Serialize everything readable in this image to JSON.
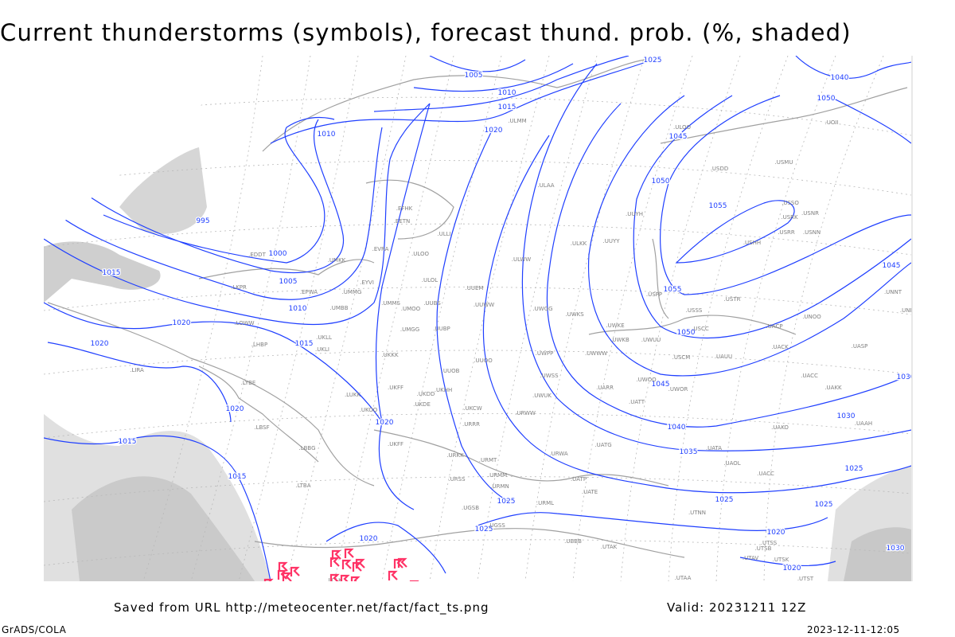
{
  "title": "Current thunderstorms (symbols), forecast thund. prob. (%, shaded)",
  "footer": {
    "source": "Saved from URL http://meteocenter.net/fact/fact_ts.png",
    "valid": "Valid: 20231211 12Z",
    "software": "GrADS/COLA",
    "timestamp": "2023-12-11-12:05"
  },
  "colors": {
    "isobar": "#1f3fff",
    "coastline": "#a0a0a0",
    "grid": "#b0b0b0",
    "thunderstorm_symbol": "#ff3366",
    "probability_shading": "#d4d4d4",
    "station_label": "#808080"
  },
  "isobar_labels": [
    "1005",
    "1010",
    "1015",
    "1020",
    "1025",
    "1040",
    "1050",
    "1045",
    "1050",
    "1055",
    "1055",
    "1050",
    "1045",
    "1045",
    "1040",
    "1035",
    "1030",
    "1025",
    "1025",
    "1025",
    "1020",
    "1020",
    "1025",
    "1020",
    "1020",
    "1020",
    "1015",
    "1015",
    "1020",
    "1020",
    "1015",
    "1010",
    "1005",
    "1000",
    "995",
    "1010",
    "1015",
    "1030",
    "1025",
    "1030"
  ],
  "stations": [
    "ULOO",
    "UOII",
    "USDD",
    "USMU",
    "ULAA",
    "USSO",
    "USRK",
    "USNR",
    "UUYH",
    "USRR",
    "USNN",
    "ULKK",
    "UUYY",
    "USHH",
    "ULOL",
    "ULWW",
    "UUEM",
    "USPP",
    "USSS",
    "USTR",
    "UUWW",
    "UMMS",
    "UMOO",
    "UUBS",
    "UWGG",
    "UWKS",
    "UWKE",
    "USCC",
    "UNOO",
    "UACP",
    "UMGG",
    "UUBP",
    "UWPP",
    "UWKB",
    "UWUU",
    "UACK",
    "UASP",
    "UKKK",
    "UWWW",
    "USCM",
    "UAUU",
    "UUOO",
    "UUOB",
    "UWSS",
    "UACC",
    "UAKK",
    "UARR",
    "UATT",
    "UWOO",
    "UWOR",
    "UKHH",
    "UKFF",
    "UKDD",
    "UKCW",
    "UWUK",
    "UKDE",
    "URWW",
    "UKOO",
    "URRR",
    "UAKO",
    "UAAH",
    "UKFF",
    "URKK",
    "UATG",
    "UATA",
    "URWA",
    "URMT",
    "UAOL",
    "UACC",
    "URMM",
    "URSS",
    "URMN",
    "UATP",
    "UATE",
    "UGSB",
    "URML",
    "UTNN",
    "UGSS",
    "EFHK",
    "EETN",
    "ULLI",
    "EVRA",
    "ULOO",
    "EDDT",
    "UMKK",
    "EPWA",
    "UMMG",
    "UMBB",
    "EYVI",
    "LKPR",
    "LOWW",
    "UKLL",
    "UKLI",
    "LHBP",
    "LIRA",
    "LYBE",
    "LUKK",
    "LBSF",
    "LBBG",
    "LTBA",
    "UTAA",
    "UTAK",
    "UTSS",
    "UTSB",
    "UTAV",
    "UTSK",
    "UTST",
    "UBBB",
    "ULMM",
    "UNNT",
    "UNBB",
    "LCLK"
  ]
}
